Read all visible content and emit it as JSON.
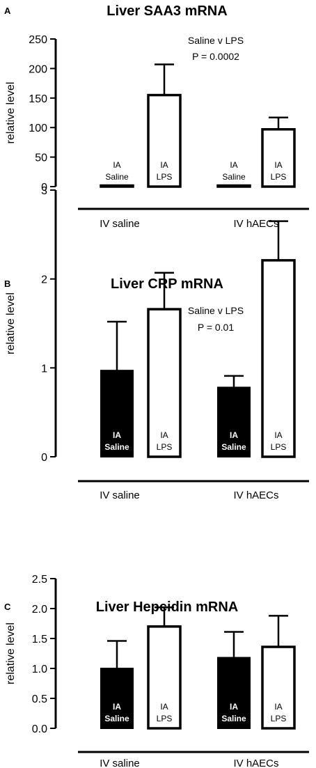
{
  "chart_data": [
    {
      "type": "bar",
      "panel": "A",
      "title": "Liver SAA3 mRNA",
      "ylabel": "relative level",
      "ylim": [
        0,
        250
      ],
      "yticks": [
        "0",
        "50",
        "100",
        "150",
        "200",
        "250"
      ],
      "groups": [
        "IV saline",
        "IV hAECs"
      ],
      "annotation": [
        "Saline v LPS",
        "P = 0.0002"
      ],
      "bars": [
        {
          "group": "IV saline",
          "label": [
            "IA",
            "Saline"
          ],
          "value": 1,
          "error": 0,
          "fill": "white"
        },
        {
          "group": "IV saline",
          "label": [
            "IA",
            "LPS"
          ],
          "value": 155,
          "error": 52,
          "fill": "white"
        },
        {
          "group": "IV hAECs",
          "label": [
            "IA",
            "Saline"
          ],
          "value": 1,
          "error": 0,
          "fill": "white"
        },
        {
          "group": "IV hAECs",
          "label": [
            "IA",
            "LPS"
          ],
          "value": 97,
          "error": 20,
          "fill": "white"
        }
      ]
    },
    {
      "type": "bar",
      "panel": "B",
      "title": "Liver CRP mRNA",
      "ylabel": "relative level",
      "ylim": [
        0,
        3
      ],
      "yticks": [
        "0",
        "1",
        "2",
        "3"
      ],
      "groups": [
        "IV saline",
        "IV hAECs"
      ],
      "annotation": [
        "Saline v LPS",
        "P = 0.01"
      ],
      "bars": [
        {
          "group": "IV saline",
          "label": [
            "IA",
            "Saline"
          ],
          "value": 0.97,
          "error": 0.55,
          "fill": "black"
        },
        {
          "group": "IV saline",
          "label": [
            "IA",
            "LPS"
          ],
          "value": 1.66,
          "error": 0.41,
          "fill": "white"
        },
        {
          "group": "IV hAECs",
          "label": [
            "IA",
            "Saline"
          ],
          "value": 0.78,
          "error": 0.13,
          "fill": "black"
        },
        {
          "group": "IV hAECs",
          "label": [
            "IA",
            "LPS"
          ],
          "value": 2.21,
          "error": 0.44,
          "fill": "white"
        }
      ]
    },
    {
      "type": "bar",
      "panel": "C",
      "title": "Liver Hepcidin mRNA",
      "ylabel": "relative level",
      "ylim": [
        0,
        2.5
      ],
      "yticks": [
        "0.0",
        "0.5",
        "1.0",
        "1.5",
        "2.0",
        "2.5"
      ],
      "groups": [
        "IV saline",
        "IV hAECs"
      ],
      "annotation": [],
      "bars": [
        {
          "group": "IV saline",
          "label": [
            "IA",
            "Saline"
          ],
          "value": 1.0,
          "error": 0.46,
          "fill": "black"
        },
        {
          "group": "IV saline",
          "label": [
            "IA",
            "LPS"
          ],
          "value": 1.7,
          "error": 0.32,
          "fill": "white"
        },
        {
          "group": "IV hAECs",
          "label": [
            "IA",
            "Saline"
          ],
          "value": 1.18,
          "error": 0.43,
          "fill": "black"
        },
        {
          "group": "IV hAECs",
          "label": [
            "IA",
            "LPS"
          ],
          "value": 1.36,
          "error": 0.52,
          "fill": "white"
        }
      ]
    }
  ]
}
